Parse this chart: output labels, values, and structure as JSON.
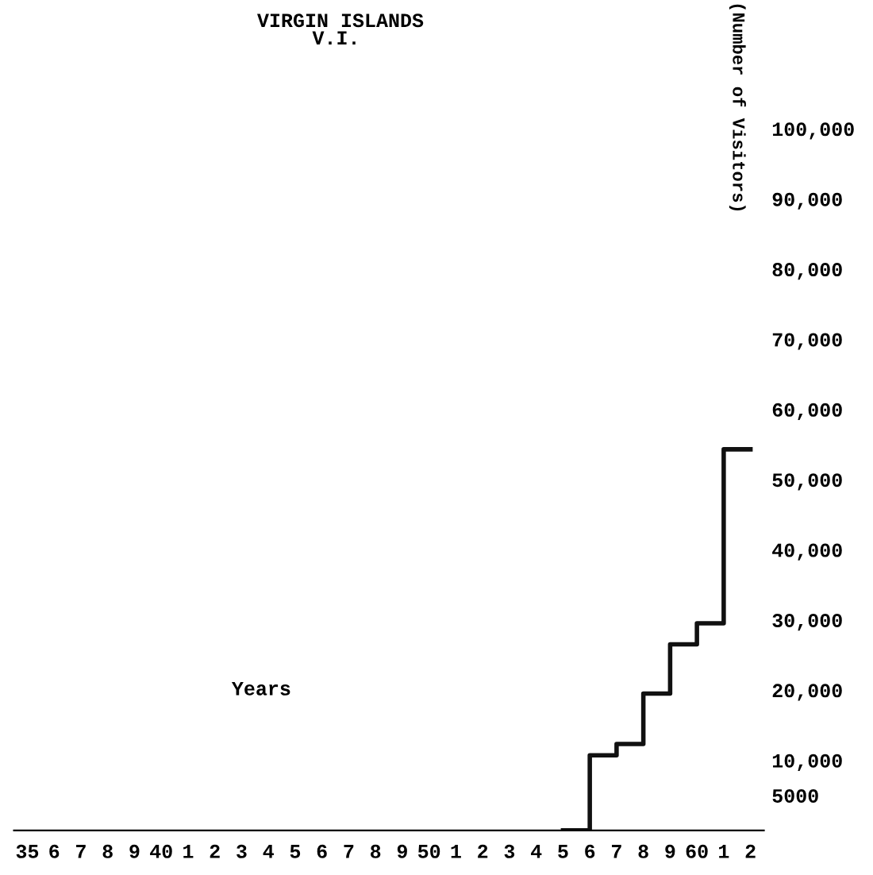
{
  "chart_data": {
    "type": "step",
    "title": "VIRGIN ISLANDS",
    "subtitle": "V.I.",
    "xlabel": "Years",
    "ylabel": "(Number of Visitors)",
    "categories": [
      "35",
      "6",
      "7",
      "8",
      "9",
      "40",
      "1",
      "2",
      "3",
      "4",
      "5",
      "6",
      "7",
      "8",
      "9",
      "50",
      "1",
      "2",
      "3",
      "4",
      "5",
      "6",
      "7",
      "8",
      "9",
      "60",
      "1",
      "2"
    ],
    "series": [
      {
        "color": "#111111",
        "values": [
          null,
          null,
          null,
          null,
          null,
          null,
          null,
          null,
          null,
          null,
          null,
          null,
          null,
          null,
          null,
          null,
          null,
          null,
          null,
          null,
          0,
          10700,
          12300,
          19500,
          26500,
          29500,
          54300,
          54300
        ]
      }
    ],
    "ylim": [
      0,
      100000
    ],
    "yticks": [
      5000,
      {
        "value": 10000,
        "label": "10,000"
      },
      {
        "value": 20000,
        "label": "20,000"
      },
      {
        "value": 30000,
        "label": "30,000"
      },
      {
        "value": 40000,
        "label": "40,000"
      },
      {
        "value": 50000,
        "label": "50,000"
      },
      {
        "value": 60000,
        "label": "60,000"
      },
      {
        "value": 70000,
        "label": "70,000"
      },
      {
        "value": 80000,
        "label": "80,000"
      },
      {
        "value": 90000,
        "label": "90,000"
      },
      {
        "value": 100000,
        "label": "100,000"
      }
    ],
    "grid": false,
    "legend": false,
    "marker": "none",
    "line_style": "solid"
  }
}
